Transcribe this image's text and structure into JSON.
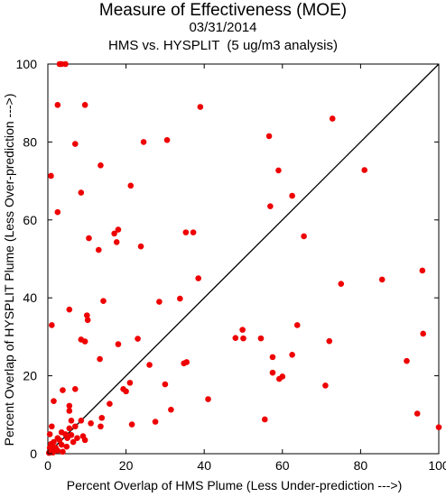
{
  "chart_data": {
    "type": "scatter",
    "title": "Measure of Effectiveness (MOE)",
    "date": "03/31/2014",
    "subtitle": "HMS vs. HYSPLIT  (5 ug/m3 analysis)",
    "xlabel": "Percent Overlap of HMS Plume (Less Under-prediction --->)",
    "ylabel": "Percent Overlap of HYSPLIT Plume (Less Over-prediction --->)",
    "xlim": [
      0,
      100
    ],
    "ylim": [
      0,
      100
    ],
    "xticks": [
      0,
      20,
      40,
      60,
      80,
      100
    ],
    "yticks": [
      0,
      20,
      40,
      60,
      80,
      100
    ],
    "reference_line": {
      "from": [
        0,
        0
      ],
      "to": [
        100,
        100
      ]
    },
    "point_color": "#ee0000",
    "points": [
      [
        3,
        100
      ],
      [
        3.5,
        100
      ],
      [
        4.5,
        100
      ],
      [
        2.5,
        89.5
      ],
      [
        9.5,
        89.5
      ],
      [
        39,
        89
      ],
      [
        72.8,
        86
      ],
      [
        56.6,
        81.5
      ],
      [
        7,
        79.5
      ],
      [
        24.5,
        80
      ],
      [
        30.5,
        80.5
      ],
      [
        13.5,
        74
      ],
      [
        59,
        72.7
      ],
      [
        81,
        72.8
      ],
      [
        0.8,
        71.3
      ],
      [
        21.2,
        68.8
      ],
      [
        8.5,
        67
      ],
      [
        62.5,
        66.2
      ],
      [
        56.9,
        63.5
      ],
      [
        2.5,
        62
      ],
      [
        18,
        57.5
      ],
      [
        17,
        56.5
      ],
      [
        35.3,
        56.8
      ],
      [
        37.2,
        56.8
      ],
      [
        65.5,
        55.8
      ],
      [
        10.5,
        55.3
      ],
      [
        17.6,
        54.3
      ],
      [
        23.8,
        53.2
      ],
      [
        13,
        52.3
      ],
      [
        95.8,
        47
      ],
      [
        38.5,
        45
      ],
      [
        85.5,
        44.7
      ],
      [
        75,
        43.6
      ],
      [
        33.8,
        39.8
      ],
      [
        28.5,
        39
      ],
      [
        14.2,
        39.2
      ],
      [
        5.5,
        37
      ],
      [
        10,
        35.5
      ],
      [
        10.2,
        34.3
      ],
      [
        1,
        33
      ],
      [
        63.8,
        33
      ],
      [
        49.8,
        31.8
      ],
      [
        96,
        30.8
      ],
      [
        48,
        29.7
      ],
      [
        50,
        29.6
      ],
      [
        54.5,
        29.6
      ],
      [
        23,
        29.5
      ],
      [
        8.5,
        29.3
      ],
      [
        9.5,
        28.8
      ],
      [
        72,
        28.9
      ],
      [
        18,
        28.1
      ],
      [
        62.5,
        25.4
      ],
      [
        57.5,
        24.8
      ],
      [
        13.3,
        24.3
      ],
      [
        91.8,
        23.8
      ],
      [
        35.5,
        23.5
      ],
      [
        34.8,
        23.2
      ],
      [
        26,
        22.8
      ],
      [
        57.5,
        20.8
      ],
      [
        60,
        19.8
      ],
      [
        59.2,
        19.2
      ],
      [
        21,
        18.2
      ],
      [
        30,
        17.8
      ],
      [
        71,
        17.5
      ],
      [
        19.3,
        16.6
      ],
      [
        7,
        16.6
      ],
      [
        3.8,
        16.3
      ],
      [
        20,
        16
      ],
      [
        41,
        14
      ],
      [
        1.5,
        13.5
      ],
      [
        15.8,
        12.8
      ],
      [
        5.5,
        12.3
      ],
      [
        31.5,
        11.3
      ],
      [
        5.5,
        11
      ],
      [
        94.5,
        10.3
      ],
      [
        13.8,
        9.2
      ],
      [
        55.5,
        8.8
      ],
      [
        6,
        8.5
      ],
      [
        8.5,
        8.5
      ],
      [
        27.5,
        8.2
      ],
      [
        11,
        7.8
      ],
      [
        21.5,
        7.5
      ],
      [
        1,
        7
      ],
      [
        7,
        7
      ],
      [
        13.5,
        7
      ],
      [
        5.5,
        6.5
      ],
      [
        100,
        6.8
      ],
      [
        3.5,
        5.5
      ],
      [
        4.5,
        5
      ],
      [
        0.5,
        5
      ],
      [
        6,
        4.8
      ],
      [
        9,
        4.5
      ],
      [
        2.5,
        4
      ],
      [
        5,
        4
      ],
      [
        7.5,
        4
      ],
      [
        3,
        3.5
      ],
      [
        9.5,
        3.5
      ],
      [
        1.5,
        3
      ],
      [
        6.5,
        3
      ],
      [
        0.8,
        2.5
      ],
      [
        3.5,
        2.3
      ],
      [
        1.2,
        2
      ],
      [
        2,
        1.5
      ],
      [
        0.5,
        1.5
      ],
      [
        4.8,
        1.8
      ],
      [
        1,
        1
      ],
      [
        0.5,
        0.5
      ],
      [
        0.3,
        0.2
      ],
      [
        1.3,
        0.3
      ],
      [
        2.5,
        0.8
      ],
      [
        3.8,
        0.5
      ]
    ]
  }
}
